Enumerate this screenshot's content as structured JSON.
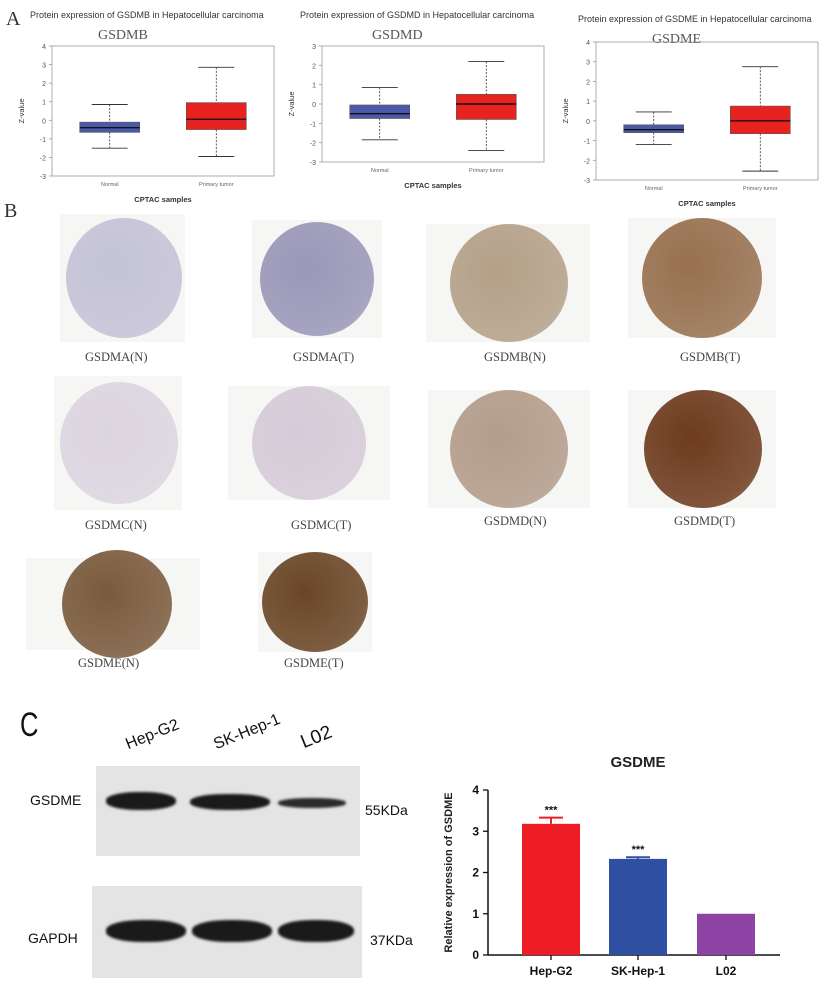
{
  "panels": {
    "a": "A",
    "b": "B",
    "c": "C"
  },
  "boxplots": [
    {
      "title": "Protein expression of GSDMB in Hepatocellular carcinoma",
      "gene": "GSDMB",
      "ylabel": "Z-value",
      "xlabel": "CPTAC samples",
      "yticks": [
        4,
        3,
        2,
        1,
        0,
        -1,
        -2,
        -3
      ],
      "ylim": [
        -3,
        4
      ]
    },
    {
      "title": "Protein expression of GSDMD in Hepatocellular carcinoma",
      "gene": "GSDMD",
      "ylabel": "Z-value",
      "xlabel": "CPTAC samples",
      "yticks": [
        3,
        2,
        1,
        0,
        -1,
        -2,
        -3
      ],
      "ylim": [
        -3,
        3
      ]
    },
    {
      "title": "Protein expression of GSDME in Hepatocellular carcinoma",
      "gene": "GSDME",
      "ylabel": "Z-value",
      "xlabel": "CPTAC samples",
      "yticks": [
        4,
        3,
        2,
        1,
        0,
        -1,
        -2,
        -3
      ],
      "ylim": [
        -3,
        4
      ]
    }
  ],
  "tma": {
    "labels": [
      "GSDMA(N)",
      "GSDMA(T)",
      "GSDMB(N)",
      "GSDMB(T)",
      "GSDMC(N)",
      "GSDMC(T)",
      "GSDMD(N)",
      "GSDMD(T)",
      "GSDME(N)",
      "GSDME(T)"
    ],
    "colors": [
      "#c4c2d6",
      "#9a97b8",
      "#b4a088",
      "#97704f",
      "#dcd5e0",
      "#d6cbd8",
      "#b39c8a",
      "#6e3b1e",
      "#7a5a3c",
      "#6a4626"
    ]
  },
  "western_blot": {
    "lanes": [
      "Hep-G2",
      "SK-Hep-1",
      "L02"
    ],
    "rows": [
      {
        "label": "GSDME",
        "size": "55KDa",
        "intensities": [
          1.0,
          0.85,
          0.55
        ]
      },
      {
        "label": "GAPDH",
        "size": "37KDa",
        "intensities": [
          1.0,
          1.0,
          1.0
        ]
      }
    ]
  },
  "chart_data": [
    {
      "type": "box",
      "title": "Protein expression of GSDMB in Hepatocellular carcinoma",
      "subtitle": "GSDMB",
      "xlabel": "CPTAC samples",
      "ylabel": "Z-value",
      "ylim": [
        -3,
        4
      ],
      "series": [
        {
          "category": "Normal",
          "whisker_low": -1.5,
          "q1": -0.65,
          "median": -0.4,
          "q3": -0.1,
          "whisker_high": 0.85,
          "color": "#4b5aa8"
        },
        {
          "category": "Primary tumor",
          "whisker_low": -1.95,
          "q1": -0.5,
          "median": 0.05,
          "q3": 0.95,
          "whisker_high": 2.85,
          "color": "#e8231f"
        }
      ]
    },
    {
      "type": "box",
      "title": "Protein expression of GSDMD in Hepatocellular carcinoma",
      "subtitle": "GSDMD",
      "xlabel": "CPTAC samples",
      "ylabel": "Z-value",
      "ylim": [
        -3,
        3
      ],
      "series": [
        {
          "category": "Normal",
          "whisker_low": -1.85,
          "q1": -0.75,
          "median": -0.5,
          "q3": -0.05,
          "whisker_high": 0.85,
          "color": "#4b5aa8"
        },
        {
          "category": "Primary tumor",
          "whisker_low": -2.4,
          "q1": -0.8,
          "median": 0.0,
          "q3": 0.5,
          "whisker_high": 2.2,
          "color": "#e8231f"
        }
      ]
    },
    {
      "type": "box",
      "title": "Protein expression of GSDME in Hepatocellular carcinoma",
      "subtitle": "GSDME",
      "xlabel": "CPTAC samples",
      "ylabel": "Z-value",
      "ylim": [
        -3,
        4
      ],
      "series": [
        {
          "category": "Normal",
          "whisker_low": -1.2,
          "q1": -0.6,
          "median": -0.45,
          "q3": -0.2,
          "whisker_high": 0.45,
          "color": "#4b5aa8"
        },
        {
          "category": "Primary tumor",
          "whisker_low": -2.55,
          "q1": -0.65,
          "median": 0.0,
          "q3": 0.75,
          "whisker_high": 2.75,
          "color": "#e8231f"
        }
      ]
    },
    {
      "type": "bar",
      "title": "GSDME",
      "ylabel": "Relative expression of GSDME",
      "categories": [
        "Hep-G2",
        "SK-Hep-1",
        "L02"
      ],
      "values": [
        3.18,
        2.33,
        1.0
      ],
      "errors": [
        0.15,
        0.04,
        0.0
      ],
      "significance": [
        "***",
        "***",
        ""
      ],
      "colors": [
        "#ee1c25",
        "#2e4fa2",
        "#8e44a4"
      ],
      "ylim": [
        0,
        4
      ],
      "yticks": [
        0,
        1,
        2,
        3,
        4
      ]
    }
  ]
}
